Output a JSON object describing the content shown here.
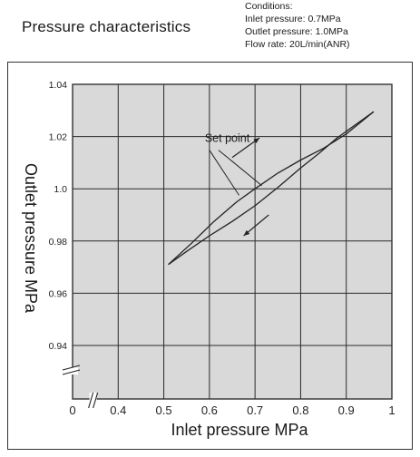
{
  "header": {
    "title": "Pressure characteristics",
    "conditions": [
      "Conditions:",
      "Inlet pressure: 0.7MPa",
      "Outlet pressure: 1.0MPa",
      "Flow rate: 20L/min(ANR)"
    ]
  },
  "chart_data": {
    "type": "line",
    "title": "Pressure characteristics",
    "xlabel": "Inlet pressure MPa",
    "ylabel": "Outlet pressure MPa",
    "x_ticks": [
      "0",
      "0.4",
      "0.5",
      "0.6",
      "0.7",
      "0.8",
      "0.9",
      "1"
    ],
    "y_ticks": [
      "1.04",
      "1.02",
      "1.0",
      "0.98",
      "0.96",
      "0.94"
    ],
    "xlim": [
      0.3,
      1.0
    ],
    "ylim": [
      0.92,
      1.04
    ],
    "x_axis_break": true,
    "y_axis_break": true,
    "grid": true,
    "annotation": "Set point",
    "set_point": {
      "x": 0.7,
      "y": 1.0
    },
    "series": [
      {
        "direction": "increasing",
        "x": [
          0.51,
          0.56,
          0.61,
          0.66,
          0.7,
          0.75,
          0.8,
          0.85,
          0.9,
          0.96
        ],
        "y": [
          0.971,
          0.979,
          0.9875,
          0.995,
          1.0,
          1.006,
          1.011,
          1.0155,
          1.021,
          1.0295
        ]
      },
      {
        "direction": "decreasing",
        "x": [
          0.96,
          0.92,
          0.88,
          0.84,
          0.8,
          0.75,
          0.7,
          0.65,
          0.6,
          0.55,
          0.51
        ],
        "y": [
          1.0295,
          1.0245,
          1.0195,
          1.0135,
          1.008,
          1.0005,
          0.9935,
          0.9875,
          0.982,
          0.976,
          0.971
        ]
      }
    ]
  }
}
